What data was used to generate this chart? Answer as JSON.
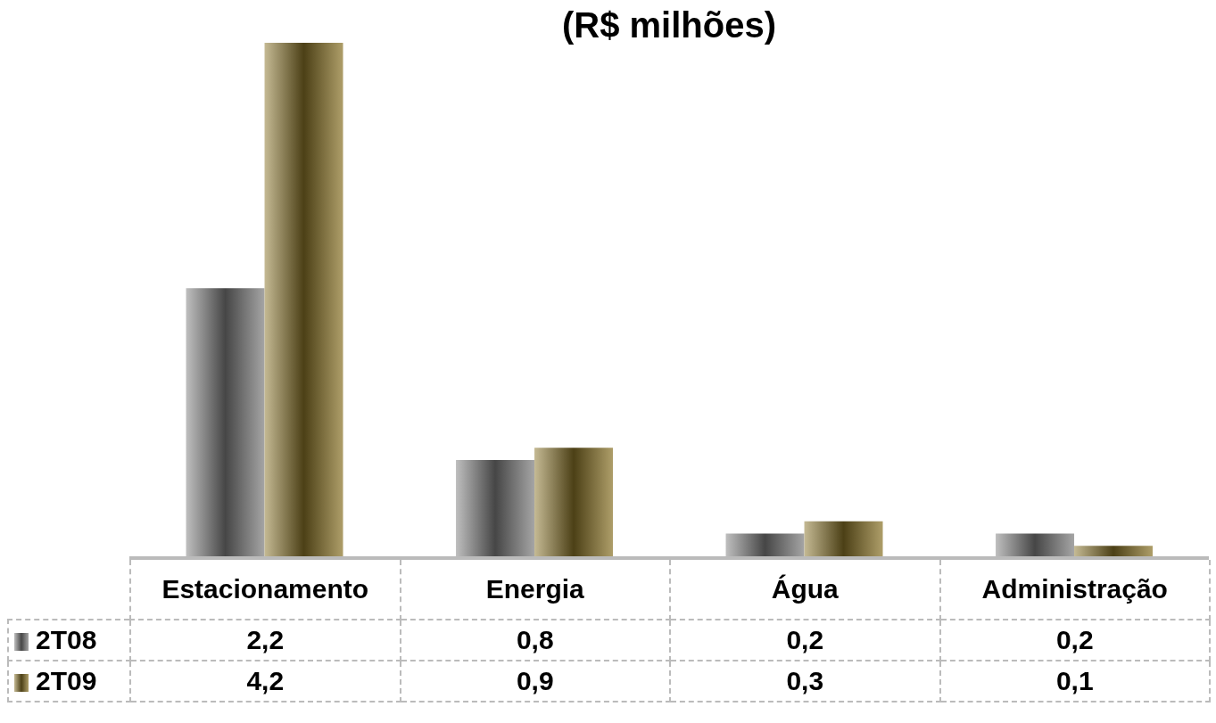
{
  "chart_data": {
    "type": "bar",
    "title": "(R$ milhões)",
    "categories": [
      "Estacionamento",
      "Energia",
      "Água",
      "Administração"
    ],
    "series": [
      {
        "name": "2T08",
        "color": "#7f7f7f",
        "values": [
          2.2,
          0.8,
          0.2,
          0.2
        ],
        "value_labels": [
          "2,2",
          "0,8",
          "0,2",
          "0,2"
        ]
      },
      {
        "name": "2T09",
        "color": "#8b7428",
        "values": [
          4.2,
          0.9,
          0.3,
          0.1
        ],
        "value_labels": [
          "4,2",
          "0,9",
          "0,3",
          "0,1"
        ]
      }
    ],
    "legend": "bottom left"
  }
}
